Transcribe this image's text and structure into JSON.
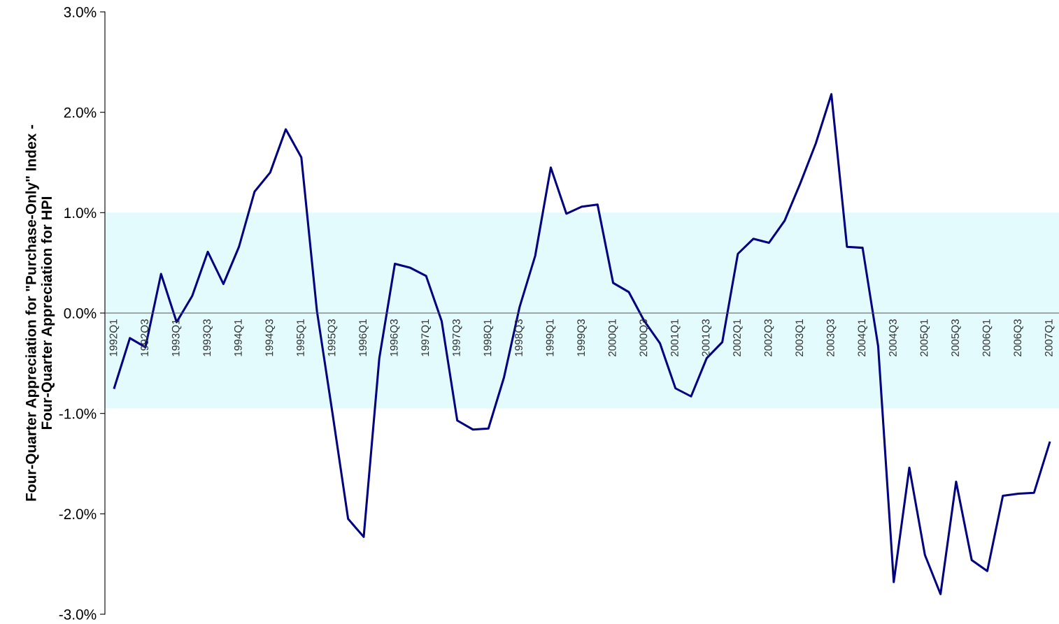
{
  "chart_data": {
    "type": "line",
    "ylabel": "Four-Quarter Appreciation for \"Purchase-Only\" Index -\nFour-Quarter Appreciation for HPI",
    "categories": [
      "1992Q1",
      null,
      "1992Q3",
      null,
      "1993Q1",
      null,
      "1993Q3",
      null,
      "1994Q1",
      null,
      "1994Q3",
      null,
      "1995Q1",
      null,
      "1995Q3",
      null,
      "1996Q1",
      null,
      "1996Q3",
      null,
      "1997Q1",
      null,
      "1997Q3",
      null,
      "1998Q1",
      null,
      "1998Q3",
      null,
      "1999Q1",
      null,
      "1999Q3",
      null,
      "2000Q1",
      null,
      "2000Q3",
      null,
      "2001Q1",
      null,
      "2001Q3",
      null,
      "2002Q1",
      null,
      "2002Q3",
      null,
      "2003Q1",
      null,
      "2003Q3",
      null,
      "2004Q1",
      null,
      "2004Q3",
      null,
      "2005Q1",
      null,
      "2005Q3",
      null,
      "2006Q1",
      null,
      "2006Q3",
      null,
      "2007Q1"
    ],
    "series": [
      {
        "color": "#000080",
        "values": [
          -0.745,
          -0.25,
          -0.34,
          0.39,
          -0.09,
          0.17,
          0.61,
          0.29,
          0.66,
          1.21,
          1.4,
          1.83,
          1.55,
          0.02,
          -1.0,
          -2.05,
          -2.23,
          -0.45,
          0.49,
          0.45,
          0.37,
          -0.08,
          -1.07,
          -1.16,
          -1.15,
          -0.64,
          0.06,
          0.57,
          1.45,
          0.99,
          1.06,
          1.08,
          0.3,
          0.21,
          -0.08,
          -0.3,
          -0.75,
          -0.83,
          -0.45,
          -0.29,
          0.59,
          0.74,
          0.7,
          0.92,
          1.29,
          1.69,
          2.18,
          0.66,
          0.65,
          -0.33,
          -2.68,
          -1.54,
          -2.41,
          -2.8,
          -1.68,
          -2.46,
          -2.57,
          -1.82,
          -1.8,
          -1.79,
          -1.29
        ]
      }
    ],
    "ylim": [
      -3.0,
      3.0
    ],
    "yticks": [
      {
        "value": -3.0,
        "label": "-3.0%"
      },
      {
        "value": -2.0,
        "label": "-2.0%"
      },
      {
        "value": -1.0,
        "label": "-1.0%"
      },
      {
        "value": 0.0,
        "label": "0.0%"
      },
      {
        "value": 1.0,
        "label": "1.0%"
      },
      {
        "value": 2.0,
        "label": "2.0%"
      },
      {
        "value": 3.0,
        "label": "3.0%"
      }
    ],
    "bands": [
      {
        "axis": "y",
        "from": -0.95,
        "to": 1.0,
        "color": "#e4fbfd"
      }
    ],
    "grid": false,
    "marker": "none",
    "line_style": "solid"
  }
}
